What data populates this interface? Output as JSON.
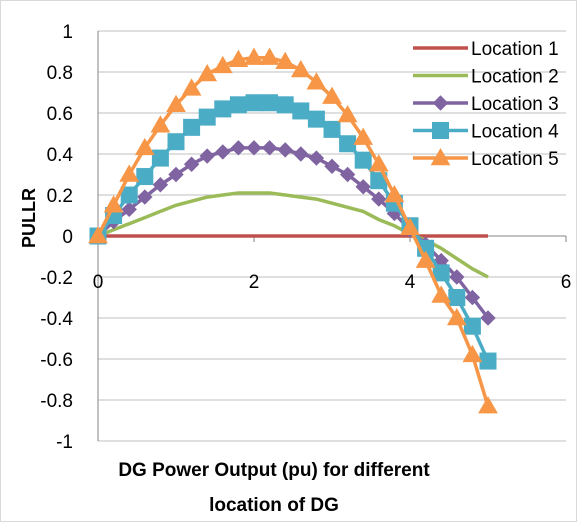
{
  "chart_data": {
    "type": "line",
    "title": "",
    "xlabel_lines": [
      "DG Power Output (pu) for different",
      "location of DG"
    ],
    "ylabel": "PULLR",
    "xlim": [
      0,
      6
    ],
    "ylim": [
      -1,
      1
    ],
    "xticks": [
      0,
      2,
      4,
      6
    ],
    "yticks": [
      1,
      0.8,
      0.6,
      0.4,
      0.2,
      0,
      -0.2,
      -0.4,
      -0.6,
      -0.8,
      -1
    ],
    "xtick_labels": [
      "0",
      "2",
      "4",
      "6"
    ],
    "ytick_labels": [
      "1",
      "0.8",
      "0.6",
      "0.4",
      "0.2",
      "0",
      "-0.2",
      "-0.4",
      "-0.6",
      "-0.8",
      "-1"
    ],
    "grid": "horizontal",
    "legend_position": "top-right",
    "x": [
      0,
      0.2,
      0.4,
      0.6,
      0.8,
      1.0,
      1.2,
      1.4,
      1.6,
      1.8,
      2.0,
      2.2,
      2.4,
      2.6,
      2.8,
      3.0,
      3.2,
      3.4,
      3.6,
      3.8,
      4.0,
      4.2,
      4.4,
      4.6,
      4.8,
      5.0
    ],
    "series": [
      {
        "name": "Location 1",
        "color": "#c0504d",
        "marker": "none",
        "values": [
          0,
          0,
          0,
          0,
          0,
          0,
          0,
          0,
          0,
          0,
          0,
          0,
          0,
          0,
          0,
          0,
          0,
          0,
          0,
          0,
          0,
          0,
          0,
          0,
          0,
          0
        ]
      },
      {
        "name": "Location 2",
        "color": "#9bbb59",
        "marker": "none",
        "values": [
          0,
          0.03,
          0.06,
          0.09,
          0.12,
          0.15,
          0.17,
          0.19,
          0.2,
          0.21,
          0.21,
          0.21,
          0.2,
          0.19,
          0.18,
          0.16,
          0.14,
          0.12,
          0.08,
          0.05,
          0.01,
          -0.02,
          -0.06,
          -0.11,
          -0.16,
          -0.2
        ]
      },
      {
        "name": "Location 3",
        "color": "#8064a2",
        "marker": "diamond",
        "values": [
          0,
          0.07,
          0.13,
          0.19,
          0.25,
          0.3,
          0.35,
          0.39,
          0.41,
          0.43,
          0.43,
          0.43,
          0.42,
          0.4,
          0.38,
          0.34,
          0.3,
          0.24,
          0.18,
          0.11,
          0.03,
          -0.04,
          -0.12,
          -0.2,
          -0.3,
          -0.4
        ]
      },
      {
        "name": "Location 4",
        "color": "#4bacc6",
        "marker": "square",
        "values": [
          0,
          0.1,
          0.2,
          0.29,
          0.38,
          0.46,
          0.53,
          0.58,
          0.62,
          0.64,
          0.65,
          0.65,
          0.64,
          0.61,
          0.57,
          0.52,
          0.45,
          0.37,
          0.27,
          0.16,
          0.05,
          -0.06,
          -0.18,
          -0.3,
          -0.44,
          -0.61
        ]
      },
      {
        "name": "Location 5",
        "color": "#f79646",
        "marker": "triangle",
        "values": [
          0,
          0.15,
          0.3,
          0.43,
          0.54,
          0.64,
          0.72,
          0.79,
          0.83,
          0.86,
          0.87,
          0.87,
          0.85,
          0.81,
          0.75,
          0.68,
          0.59,
          0.48,
          0.35,
          0.2,
          0.04,
          -0.12,
          -0.29,
          -0.4,
          -0.58,
          -0.83
        ]
      }
    ]
  }
}
